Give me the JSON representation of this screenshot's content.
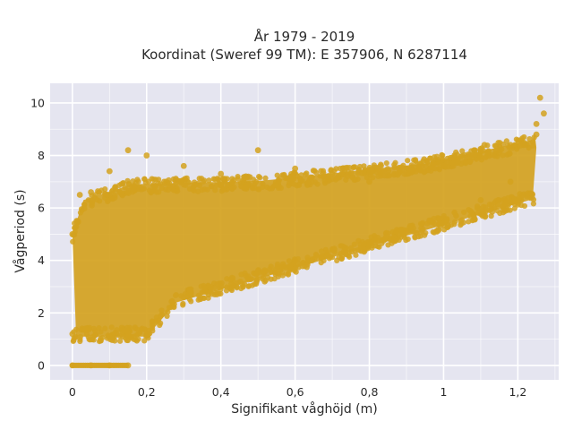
{
  "chart_data": {
    "type": "scatter",
    "title_line1": "År 1979 - 2019",
    "title_line2": "Koordinat (Sweref 99 TM): E 357906, N 6287114",
    "xlabel": "Signifikant våghöjd (m)",
    "ylabel": "Vågperiod (s)",
    "xlim": [
      -0.06,
      1.31
    ],
    "ylim": [
      -0.55,
      10.75
    ],
    "x_ticks": [
      0,
      0.2,
      0.4,
      0.6,
      0.8,
      1,
      1.2
    ],
    "x_tick_labels": [
      "0",
      "0,2",
      "0,4",
      "0,6",
      "0,8",
      "1",
      "1,2"
    ],
    "y_ticks": [
      0,
      2,
      4,
      6,
      8,
      10
    ],
    "y_tick_labels": [
      "0",
      "2",
      "4",
      "6",
      "8",
      "10"
    ],
    "grid": true,
    "colors": {
      "marker": "#d4a21f",
      "plot_background": "#e5e5f0",
      "grid": "#ffffff"
    },
    "series": [
      {
        "values": [
          [
            0.0,
            0.0
          ],
          [
            0.05,
            0.0
          ],
          [
            0.1,
            0.0
          ],
          [
            0.15,
            0.0
          ],
          [
            0.0,
            1.2
          ],
          [
            0.0,
            5.0
          ],
          [
            0.02,
            6.5
          ],
          [
            0.05,
            6.6
          ],
          [
            0.1,
            7.4
          ],
          [
            0.15,
            8.2
          ],
          [
            0.2,
            1.2
          ],
          [
            0.2,
            8.0
          ],
          [
            0.3,
            2.6
          ],
          [
            0.3,
            7.6
          ],
          [
            0.4,
            3.0
          ],
          [
            0.4,
            7.3
          ],
          [
            0.5,
            3.6
          ],
          [
            0.5,
            8.2
          ],
          [
            0.6,
            4.0
          ],
          [
            0.6,
            7.5
          ],
          [
            0.7,
            4.4
          ],
          [
            0.7,
            7.3
          ],
          [
            0.8,
            4.7
          ],
          [
            0.8,
            7.0
          ],
          [
            0.9,
            5.1
          ],
          [
            0.9,
            7.3
          ],
          [
            1.0,
            5.6
          ],
          [
            1.0,
            7.6
          ],
          [
            1.1,
            6.3
          ],
          [
            1.1,
            8.2
          ],
          [
            1.18,
            7.0
          ],
          [
            1.18,
            8.4
          ],
          [
            1.25,
            8.8
          ],
          [
            1.25,
            9.2
          ],
          [
            1.11,
            8.4
          ],
          [
            1.26,
            10.2
          ],
          [
            1.27,
            9.6
          ]
        ]
      }
    ]
  }
}
